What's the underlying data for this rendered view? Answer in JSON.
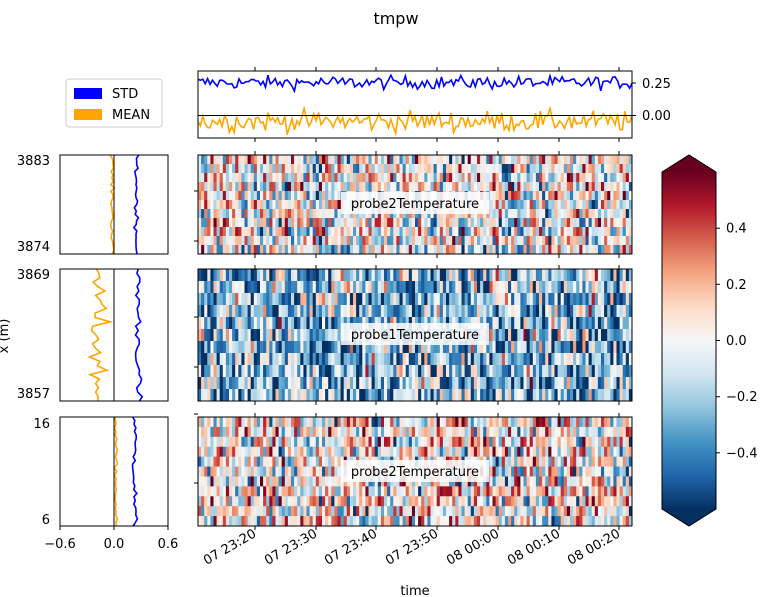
{
  "figure": {
    "title": "tmpw"
  },
  "legend": {
    "placement": "upper-left",
    "items": [
      {
        "label": "STD",
        "color": "#0000ff"
      },
      {
        "label": "MEAN",
        "color": "#ffa500"
      }
    ]
  },
  "chart_data": [
    {
      "id": "time_series",
      "type": "line",
      "x_range": [
        "07 23:11:30",
        "08 00:22:30"
      ],
      "yticks": [
        "0.25",
        "0.00"
      ],
      "ylim": [
        -0.16,
        0.36
      ],
      "hline": 0,
      "series": [
        {
          "name": "STD",
          "color": "#0000ff",
          "mean": 0.27,
          "noise": 0.025
        },
        {
          "name": "MEAN",
          "color": "#ffa500",
          "mean": -0.03,
          "noise": 0.04
        }
      ]
    },
    {
      "id": "profile_top",
      "type": "line",
      "xlim": [
        -0.6,
        0.6
      ],
      "yticks": [
        "3883",
        "3874"
      ],
      "series": [
        {
          "name": "STD",
          "color": "#0000ff",
          "mean": 0.25,
          "noise": 0.012
        },
        {
          "name": "MEAN",
          "color": "#ffa500",
          "mean": -0.02,
          "noise": 0.01
        }
      ]
    },
    {
      "id": "profile_mid",
      "type": "line",
      "xlim": [
        -0.6,
        0.6
      ],
      "yticks": [
        "3869",
        "3857"
      ],
      "series": [
        {
          "name": "STD",
          "color": "#0000ff",
          "mean": 0.27,
          "noise": 0.02
        },
        {
          "name": "MEAN",
          "color": "#ffa500",
          "mean": -0.18,
          "noise": 0.06
        }
      ]
    },
    {
      "id": "profile_bottom",
      "type": "line",
      "xlim": [
        -0.6,
        0.6
      ],
      "xticks": [
        "−0.6",
        "0.0",
        "0.6"
      ],
      "yticks": [
        "16",
        "6"
      ],
      "series": [
        {
          "name": "STD",
          "color": "#0000ff",
          "mean": 0.23,
          "noise": 0.015
        },
        {
          "name": "MEAN",
          "color": "#ffa500",
          "mean": 0.02,
          "noise": 0.008
        }
      ]
    },
    {
      "id": "heatmap_top",
      "type": "heatmap",
      "label": "probe2Temperature",
      "bias": 0.0
    },
    {
      "id": "heatmap_mid",
      "type": "heatmap",
      "label": "probe1Temperature",
      "bias": -0.25
    },
    {
      "id": "heatmap_bottom",
      "type": "heatmap",
      "label": "probe2Temperature",
      "bias": 0.05
    },
    {
      "id": "colorbar",
      "type": "colorbar",
      "colormap": "RdBu_r",
      "range": [
        -0.6,
        0.6
      ],
      "ticks": [
        {
          "value": 0.4,
          "label": "0.4"
        },
        {
          "value": 0.2,
          "label": "0.2"
        },
        {
          "value": 0.0,
          "label": "0.0"
        },
        {
          "value": -0.2,
          "label": "−0.2"
        },
        {
          "value": -0.4,
          "label": "−0.4"
        }
      ]
    }
  ],
  "xaxis": {
    "label": "time",
    "ticks": [
      "07 23:20",
      "07 23:30",
      "07 23:40",
      "07 23:50",
      "08 00:00",
      "08 00:10",
      "08 00:20"
    ]
  },
  "yaxis": {
    "label": "x (m)"
  }
}
